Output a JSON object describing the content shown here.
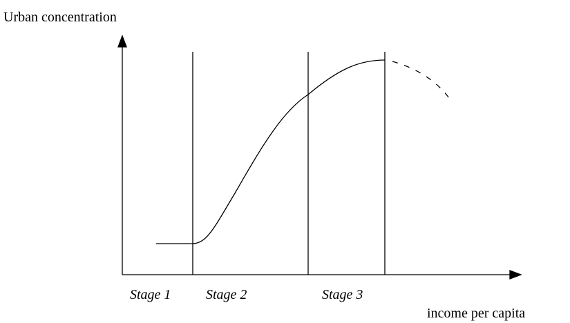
{
  "axes": {
    "y_label": "Urban concentration",
    "x_label": "income per capita"
  },
  "stages": [
    "Stage 1",
    "Stage 2",
    "Stage 3"
  ]
}
